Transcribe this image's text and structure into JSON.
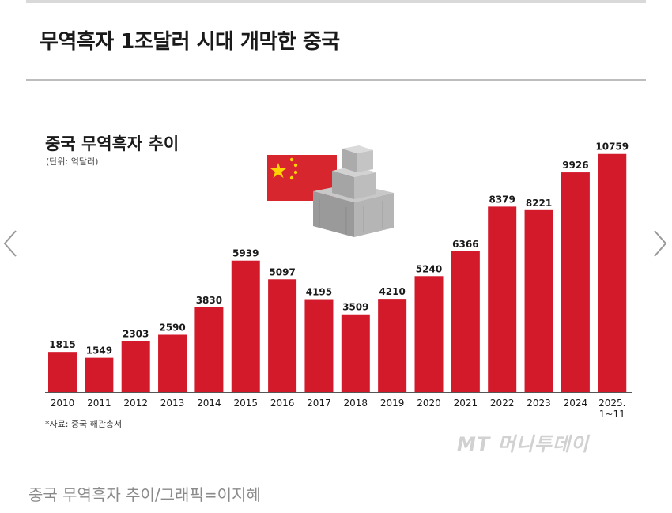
{
  "article": {
    "headline": "무역흑자 1조달러 시대 개막한 중국",
    "caption": "중국 무역흑자 추이/그래픽=이지혜",
    "watermark": "MT 머니투데이"
  },
  "colors": {
    "bar": "#d21a2b",
    "text": "#1a1a1a"
  },
  "chart_data": {
    "type": "bar",
    "title": "중국 무역흑자 추이",
    "unit": "(단위: 억달러)",
    "source": "*자료: 중국 해관총서",
    "categories": [
      "2010",
      "2011",
      "2012",
      "2013",
      "2014",
      "2015",
      "2016",
      "2017",
      "2018",
      "2019",
      "2020",
      "2021",
      "2022",
      "2023",
      "2024",
      "2025.1~11"
    ],
    "values": [
      1815,
      1549,
      2303,
      2590,
      3830,
      5939,
      5097,
      4195,
      3509,
      4210,
      5240,
      6366,
      8379,
      8221,
      9926,
      10759
    ],
    "ylim": [
      0,
      11000
    ],
    "grid": false,
    "legend": "none"
  }
}
